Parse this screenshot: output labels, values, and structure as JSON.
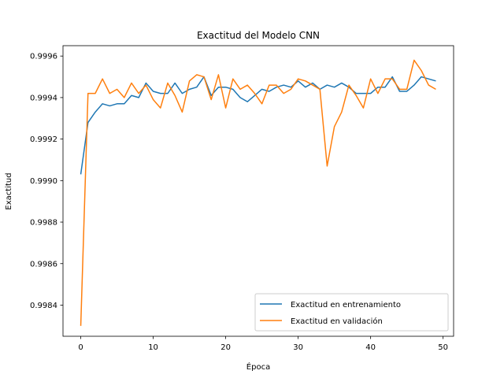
{
  "chart_data": {
    "type": "line",
    "title": "Exactitud del Modelo CNN",
    "xlabel": "Época",
    "ylabel": "Exactitud",
    "xlim": [
      -2.45,
      51.45
    ],
    "ylim": [
      0.99825,
      0.99965
    ],
    "xticks": [
      0,
      10,
      20,
      30,
      40,
      50
    ],
    "xtick_labels": [
      "0",
      "10",
      "20",
      "30",
      "40",
      "50"
    ],
    "yticks": [
      0.9984,
      0.9986,
      0.9988,
      0.999,
      0.9992,
      0.9994,
      0.9996
    ],
    "ytick_labels": [
      "0.9984",
      "0.9986",
      "0.9988",
      "0.9990",
      "0.9992",
      "0.9994",
      "0.9996"
    ],
    "grid": false,
    "legend_position": "lower-right",
    "x": [
      0,
      1,
      2,
      3,
      4,
      5,
      6,
      7,
      8,
      9,
      10,
      11,
      12,
      13,
      14,
      15,
      16,
      17,
      18,
      19,
      20,
      21,
      22,
      23,
      24,
      25,
      26,
      27,
      28,
      29,
      30,
      31,
      32,
      33,
      34,
      35,
      36,
      37,
      38,
      39,
      40,
      41,
      42,
      43,
      44,
      45,
      46,
      47,
      48,
      49
    ],
    "series": [
      {
        "name": "Exactitud en entrenamiento",
        "color": "#1f77b4",
        "values": [
          0.99903,
          0.99928,
          0.99933,
          0.99937,
          0.99936,
          0.99937,
          0.99937,
          0.99941,
          0.9994,
          0.99947,
          0.99943,
          0.99942,
          0.99942,
          0.99947,
          0.99942,
          0.99944,
          0.99945,
          0.9995,
          0.99941,
          0.99945,
          0.99945,
          0.99944,
          0.9994,
          0.99938,
          0.99941,
          0.99944,
          0.99943,
          0.99945,
          0.99946,
          0.99945,
          0.99948,
          0.99945,
          0.99947,
          0.99944,
          0.99946,
          0.99945,
          0.99947,
          0.99945,
          0.99942,
          0.99942,
          0.99942,
          0.99945,
          0.99945,
          0.9995,
          0.99943,
          0.99943,
          0.99946,
          0.9995,
          0.99949,
          0.99948
        ]
      },
      {
        "name": "Exactitud en validación",
        "color": "#ff7f0e",
        "values": [
          0.9983,
          0.99942,
          0.99942,
          0.99949,
          0.99942,
          0.99944,
          0.9994,
          0.99947,
          0.99942,
          0.99946,
          0.99939,
          0.99935,
          0.99947,
          0.99941,
          0.99933,
          0.99948,
          0.99951,
          0.9995,
          0.99939,
          0.99951,
          0.99935,
          0.99949,
          0.99944,
          0.99946,
          0.99942,
          0.99937,
          0.99946,
          0.99946,
          0.99942,
          0.99944,
          0.99949,
          0.99948,
          0.99946,
          0.99944,
          0.99907,
          0.99926,
          0.99933,
          0.99946,
          0.99941,
          0.99935,
          0.99949,
          0.99942,
          0.99949,
          0.99949,
          0.99944,
          0.99944,
          0.99958,
          0.99953,
          0.99946,
          0.99944
        ]
      }
    ]
  }
}
